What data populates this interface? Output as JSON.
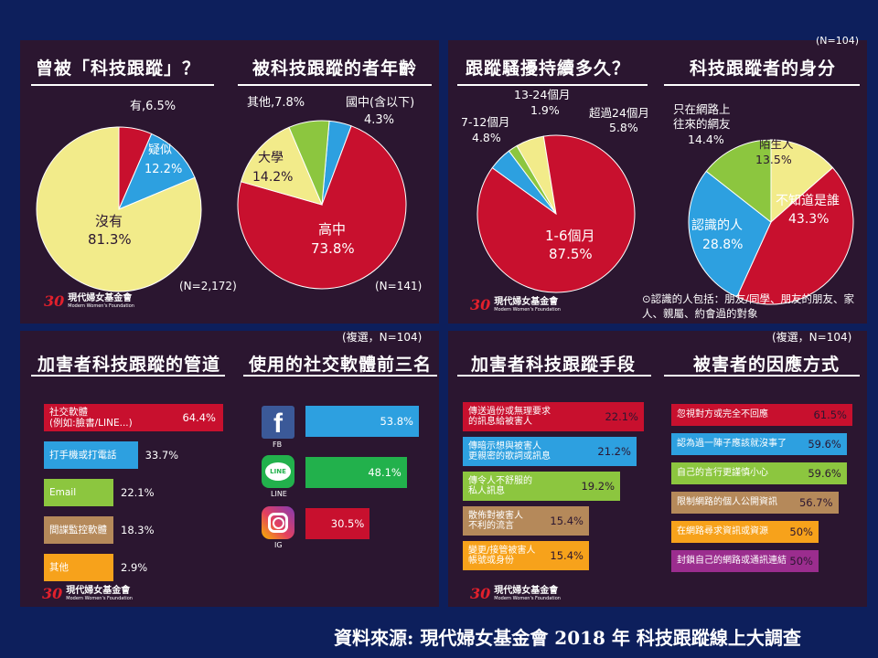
{
  "source": "資料來源: 現代婦女基金會 2018 年 科技跟蹤線上大調查",
  "logo": {
    "mark": "30",
    "zh": "現代婦女基金會",
    "en": "Modern Women's Foundation"
  },
  "colors": {
    "red": "#c8102e",
    "yellow": "#f2eb8a",
    "blue": "#2da0e0",
    "green": "#8cc63f",
    "tan": "#b5895a",
    "orange": "#f7a21b",
    "purple": "#9b2d8e",
    "bg": "#2b1630",
    "slide": "#0d1f5c"
  },
  "chart_data": [
    {
      "type": "pie",
      "title": "曾被「科技跟蹤」？",
      "note": "(N=2,172)",
      "slices": [
        {
          "label": "有",
          "value": 6.5,
          "text": "有,6.5%",
          "color": "#c8102e"
        },
        {
          "label": "疑似",
          "value": 12.2,
          "text": "12.2%",
          "color": "#2da0e0"
        },
        {
          "label": "沒有",
          "value": 81.3,
          "text": "81.3%",
          "color": "#f2eb8a"
        }
      ]
    },
    {
      "type": "pie",
      "title": "被科技跟蹤的者年齡",
      "note": "(N=141)",
      "slices": [
        {
          "label": "國中(含以下)",
          "value": 4.3,
          "text": "4.3%",
          "color": "#2da0e0"
        },
        {
          "label": "高中",
          "value": 73.8,
          "text": "73.8%",
          "color": "#c8102e"
        },
        {
          "label": "大學",
          "value": 14.2,
          "text": "14.2%",
          "color": "#f2eb8a"
        },
        {
          "label": "其他",
          "value": 7.8,
          "text": "其他,7.8%",
          "color": "#8cc63f"
        }
      ]
    },
    {
      "type": "pie",
      "title": "跟蹤騷擾持續多久？",
      "note": "(N=104)",
      "slices": [
        {
          "label": "1-6個月",
          "value": 87.5,
          "text": "87.5%",
          "color": "#c8102e"
        },
        {
          "label": "7-12個月",
          "value": 4.8,
          "text": "4.8%",
          "color": "#2da0e0"
        },
        {
          "label": "13-24個月",
          "value": 1.9,
          "text": "1.9%",
          "color": "#8cc63f"
        },
        {
          "label": "超過24個月",
          "value": 5.8,
          "text": "5.8%",
          "color": "#f2eb8a"
        }
      ]
    },
    {
      "type": "pie",
      "title": "科技跟蹤者的身分",
      "note": "⊙認識的人包括：朋友/同學、朋友的朋友、家人、親屬、約會過的對象",
      "slices": [
        {
          "label": "陌生人",
          "value": 13.5,
          "text": "13.5%",
          "color": "#f2eb8a"
        },
        {
          "label": "不知道是誰",
          "value": 43.3,
          "text": "43.3%",
          "color": "#c8102e"
        },
        {
          "label": "認識的人",
          "value": 28.8,
          "text": "28.8%",
          "color": "#2da0e0"
        },
        {
          "label": "只在網路上往來的網友",
          "value": 14.4,
          "text": "14.4%",
          "color": "#8cc63f"
        }
      ]
    },
    {
      "type": "bar",
      "title": "加害者科技跟蹤的管道",
      "note": "(複選，N=104)",
      "categories": [
        "社交軟體\n(例如:臉書/LINE...)",
        "打手機或打電話",
        "Email",
        "間諜監控軟體",
        "其他"
      ],
      "values": [
        64.4,
        33.7,
        22.1,
        18.3,
        2.9
      ],
      "texts": [
        "64.4%",
        "33.7%",
        "22.1%",
        "18.3%",
        "2.9%"
      ],
      "colors": [
        "#c8102e",
        "#2da0e0",
        "#8cc63f",
        "#b5895a",
        "#f7a21b"
      ]
    },
    {
      "type": "bar",
      "title": "使用的社交軟體前三名",
      "categories": [
        "FB",
        "LINE",
        "IG"
      ],
      "values": [
        53.8,
        48.1,
        30.5
      ],
      "texts": [
        "53.8%",
        "48.1%",
        "30.5%"
      ],
      "colors": [
        "#2da0e0",
        "#22b14c",
        "#c8102e"
      ]
    },
    {
      "type": "bar",
      "title": "加害者科技跟蹤手段",
      "note": "(複選，N=104)",
      "categories": [
        "傳送過份或無理要求\n的訊息給被害人",
        "傳暗示想與被害人\n更親密的歌詞或訊息",
        "傳令人不舒服的\n私人訊息",
        "散佈對被害人\n不利的流言",
        "變更/接管被害人\n帳號或身份"
      ],
      "values": [
        22.1,
        21.2,
        19.2,
        15.4,
        15.4
      ],
      "texts": [
        "22.1%",
        "21.2%",
        "19.2%",
        "15.4%",
        "15.4%"
      ],
      "colors": [
        "#c8102e",
        "#2da0e0",
        "#8cc63f",
        "#b5895a",
        "#f7a21b"
      ]
    },
    {
      "type": "bar",
      "title": "被害者的因應方式",
      "categories": [
        "忽視對方或完全不回應",
        "認為過一陣子應該就沒事了",
        "自己的言行更謹慎小心",
        "限制網路的個人公開資訊",
        "在網路尋求資訊或資源",
        "封鎖自己的網路或通訊連結"
      ],
      "values": [
        61.5,
        59.6,
        59.6,
        56.7,
        50,
        50
      ],
      "texts": [
        "61.5%",
        "59.6%",
        "59.6%",
        "56.7%",
        "50%",
        "50%"
      ],
      "colors": [
        "#c8102e",
        "#2da0e0",
        "#8cc63f",
        "#b5895a",
        "#f7a21b",
        "#9b2d8e"
      ]
    }
  ]
}
